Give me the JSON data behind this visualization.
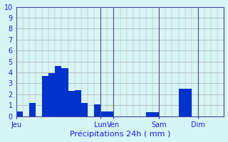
{
  "title": "Précipitations 24h ( mm )",
  "background_color": "#d8f5f5",
  "bar_color": "#0033cc",
  "grid_color": "#aaaaaa",
  "ylim": [
    0,
    10
  ],
  "yticks": [
    0,
    1,
    2,
    3,
    4,
    5,
    6,
    7,
    8,
    9,
    10
  ],
  "day_labels": [
    "Jeu",
    "Lun",
    "Ven",
    "Sam",
    "Dim"
  ],
  "day_tick_positions": [
    0,
    13,
    15,
    22,
    28
  ],
  "n_bars": 32,
  "bar_values": [
    0.4,
    0,
    1.2,
    0,
    3.7,
    3.9,
    4.6,
    4.4,
    2.3,
    2.4,
    1.2,
    0,
    1.1,
    0.4,
    0.4,
    0,
    0,
    0,
    0,
    0,
    0.35,
    0.35,
    0,
    0,
    0,
    2.5,
    2.5,
    0,
    0,
    0,
    0,
    0
  ],
  "vline_positions": [
    0,
    13,
    15,
    22,
    28
  ],
  "xlabel_color": "#1a1aff",
  "tick_label_color": "#1a1aff",
  "spine_color": "#4444aa",
  "xlabel_fontsize": 8,
  "tick_fontsize": 7
}
